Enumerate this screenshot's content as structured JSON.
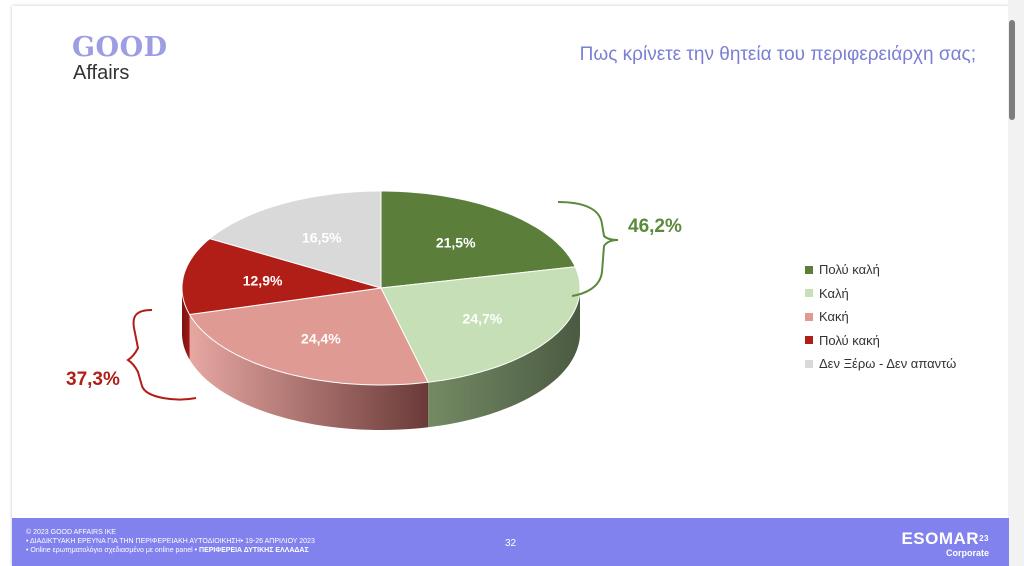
{
  "logo": {
    "top": "GOOD",
    "bottom": "Affairs"
  },
  "title": "Πως κρίνετε την θητεία του περιφερειάρχη σας;",
  "chart_data": {
    "type": "pie",
    "categories": [
      "Πολύ καλή",
      "Καλή",
      "Κακή",
      "Πολύ κακή",
      "Δεν Ξέρω - Δεν απαντώ"
    ],
    "values": [
      21.5,
      24.7,
      24.4,
      12.9,
      16.5
    ],
    "value_labels": [
      "21,5%",
      "24,7%",
      "24,4%",
      "12,9%",
      "16,5%"
    ],
    "colors": [
      "#5b7f3b",
      "#c6dfb6",
      "#e09a94",
      "#b01e17",
      "#d9d9d9"
    ],
    "legend_position": "right",
    "annotations": [
      {
        "text": "46,2%",
        "color": "#5b8a3c",
        "groups": [
          "Πολύ καλή",
          "Καλή"
        ]
      },
      {
        "text": "37,3%",
        "color": "#b01e17",
        "groups": [
          "Κακή",
          "Πολύ κακή"
        ]
      }
    ]
  },
  "footer": {
    "line1": "© 2023 GOOD AFFAIRS IKE",
    "line2": "• ΔΙΑΔΙΚΤΥΑΚΗ ΕΡΕΥΝΑ  ΓΙΑ ΤΗΝ ΠΕΡΙΦΕΡΕΙΑΚΗ ΑΥΤΟΔΙΟΙΚΗΣΗ• 19-26 ΑΠΡΙΛΙΟΥ 2023",
    "line3a": "• Online ερωτηματολόγιο σχεδιασμένο με online panel",
    "line3b": "• ΠΕΡΙΦΕΡΕΙΑ ΔΥΤΙΚΗΣ ΕΛΛΑΔΑΣ",
    "page": "32",
    "brand": "ESOMAR",
    "brand_sup": "23",
    "brand_sub": "Corporate"
  }
}
